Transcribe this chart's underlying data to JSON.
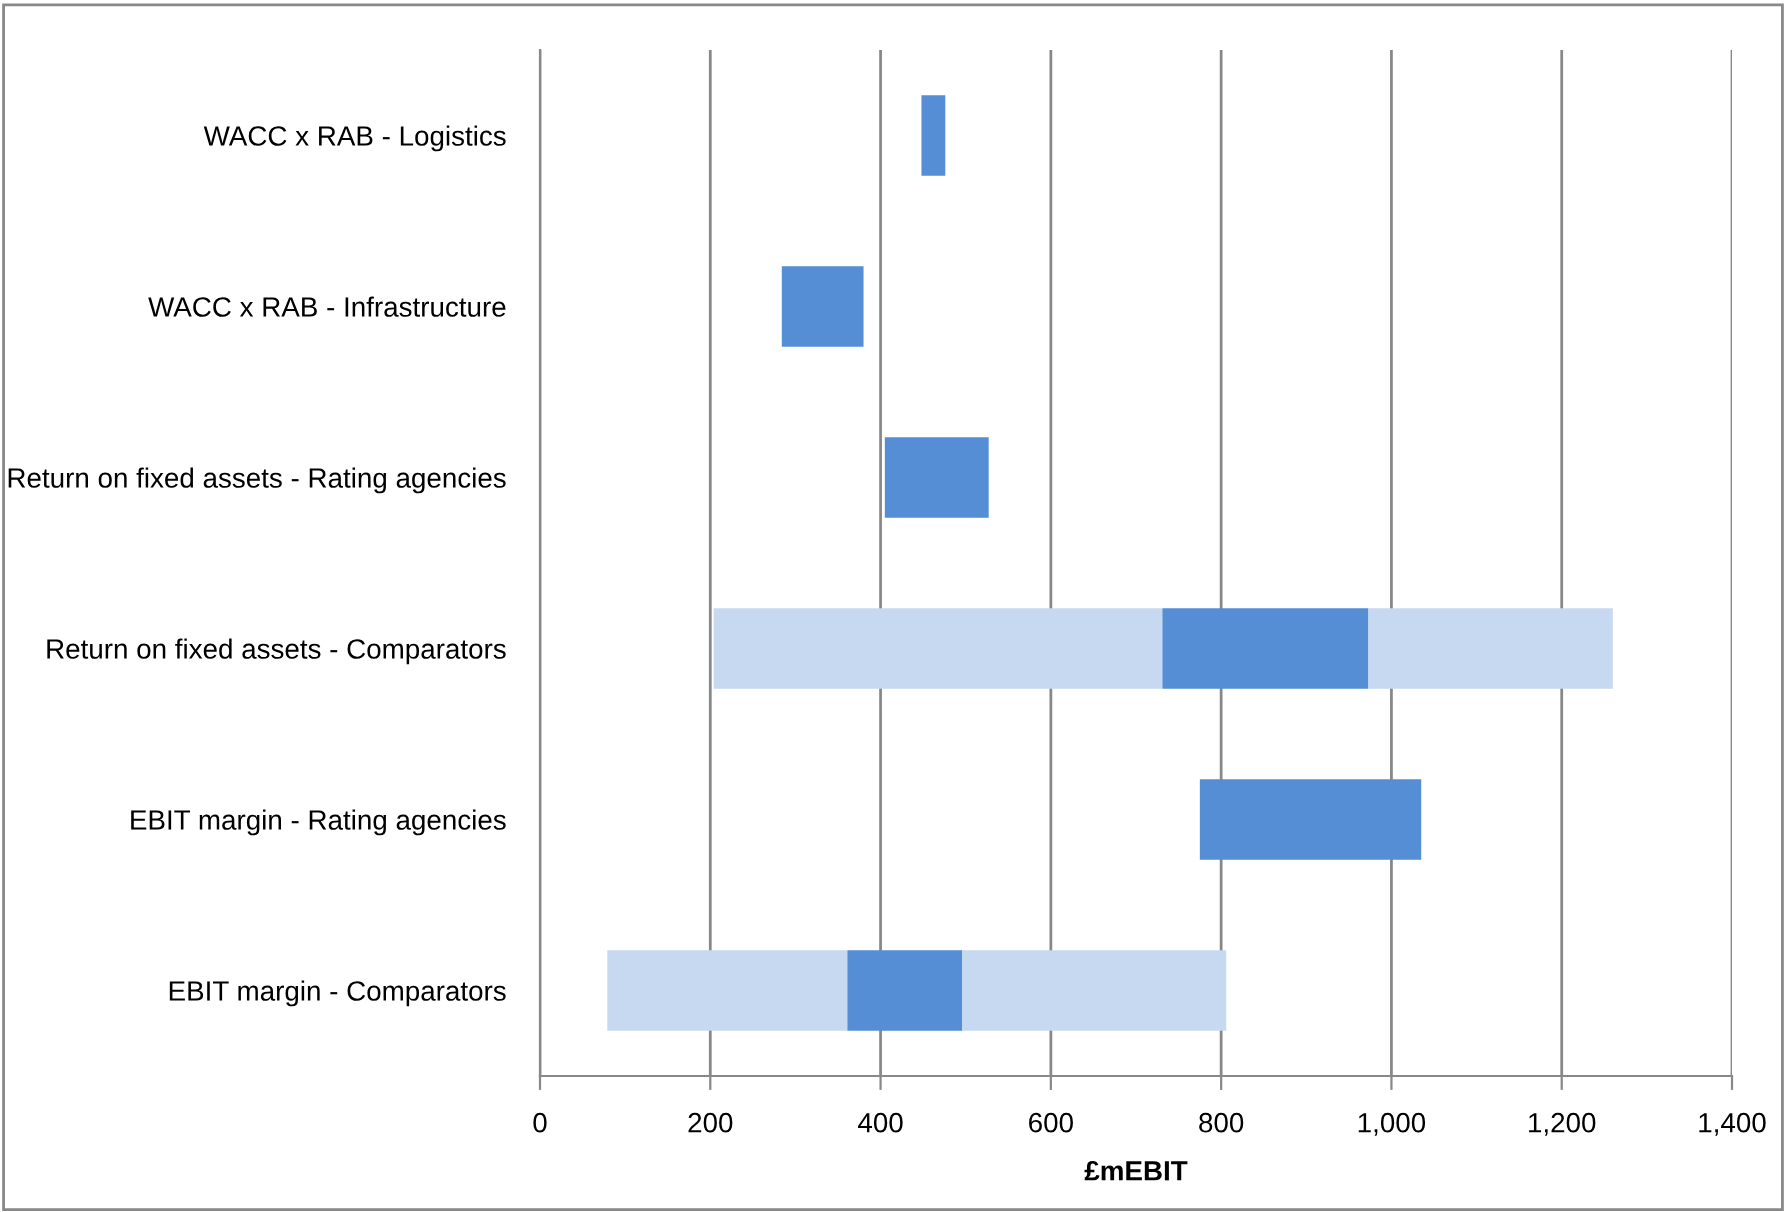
{
  "chart_data": {
    "type": "bar",
    "orientation": "horizontal",
    "xlabel": "£mEBIT",
    "categories": [
      "WACC x RAB - Logistics",
      "WACC x RAB - Infrastructure",
      "Return on fixed assets - Rating agencies",
      "Return on fixed assets - Comparators",
      "EBIT margin - Rating agencies",
      "EBIT margin - Comparators"
    ],
    "series": [
      {
        "color": "#c6d9f1",
        "base": [
          null,
          null,
          null,
          204,
          null,
          79
        ],
        "values": [
          null,
          null,
          null,
          527,
          null,
          282
        ]
      },
      {
        "color": "#558ed5",
        "base": [
          448,
          284,
          405,
          731,
          775,
          361
        ],
        "values": [
          28,
          96,
          122,
          242,
          260,
          135
        ]
      },
      {
        "color": "#c6d9f1",
        "base": [
          null,
          null,
          null,
          973,
          null,
          496
        ],
        "values": [
          null,
          null,
          null,
          287,
          null,
          310
        ]
      }
    ],
    "xlim": [
      0,
      1400
    ],
    "xticks": [
      0,
      200,
      400,
      600,
      800,
      {
        "value": 1000,
        "label": "1,000"
      },
      {
        "value": 1200,
        "label": "1,200"
      },
      {
        "value": 1400,
        "label": "1,400"
      }
    ],
    "grid": "x",
    "legend": false
  }
}
